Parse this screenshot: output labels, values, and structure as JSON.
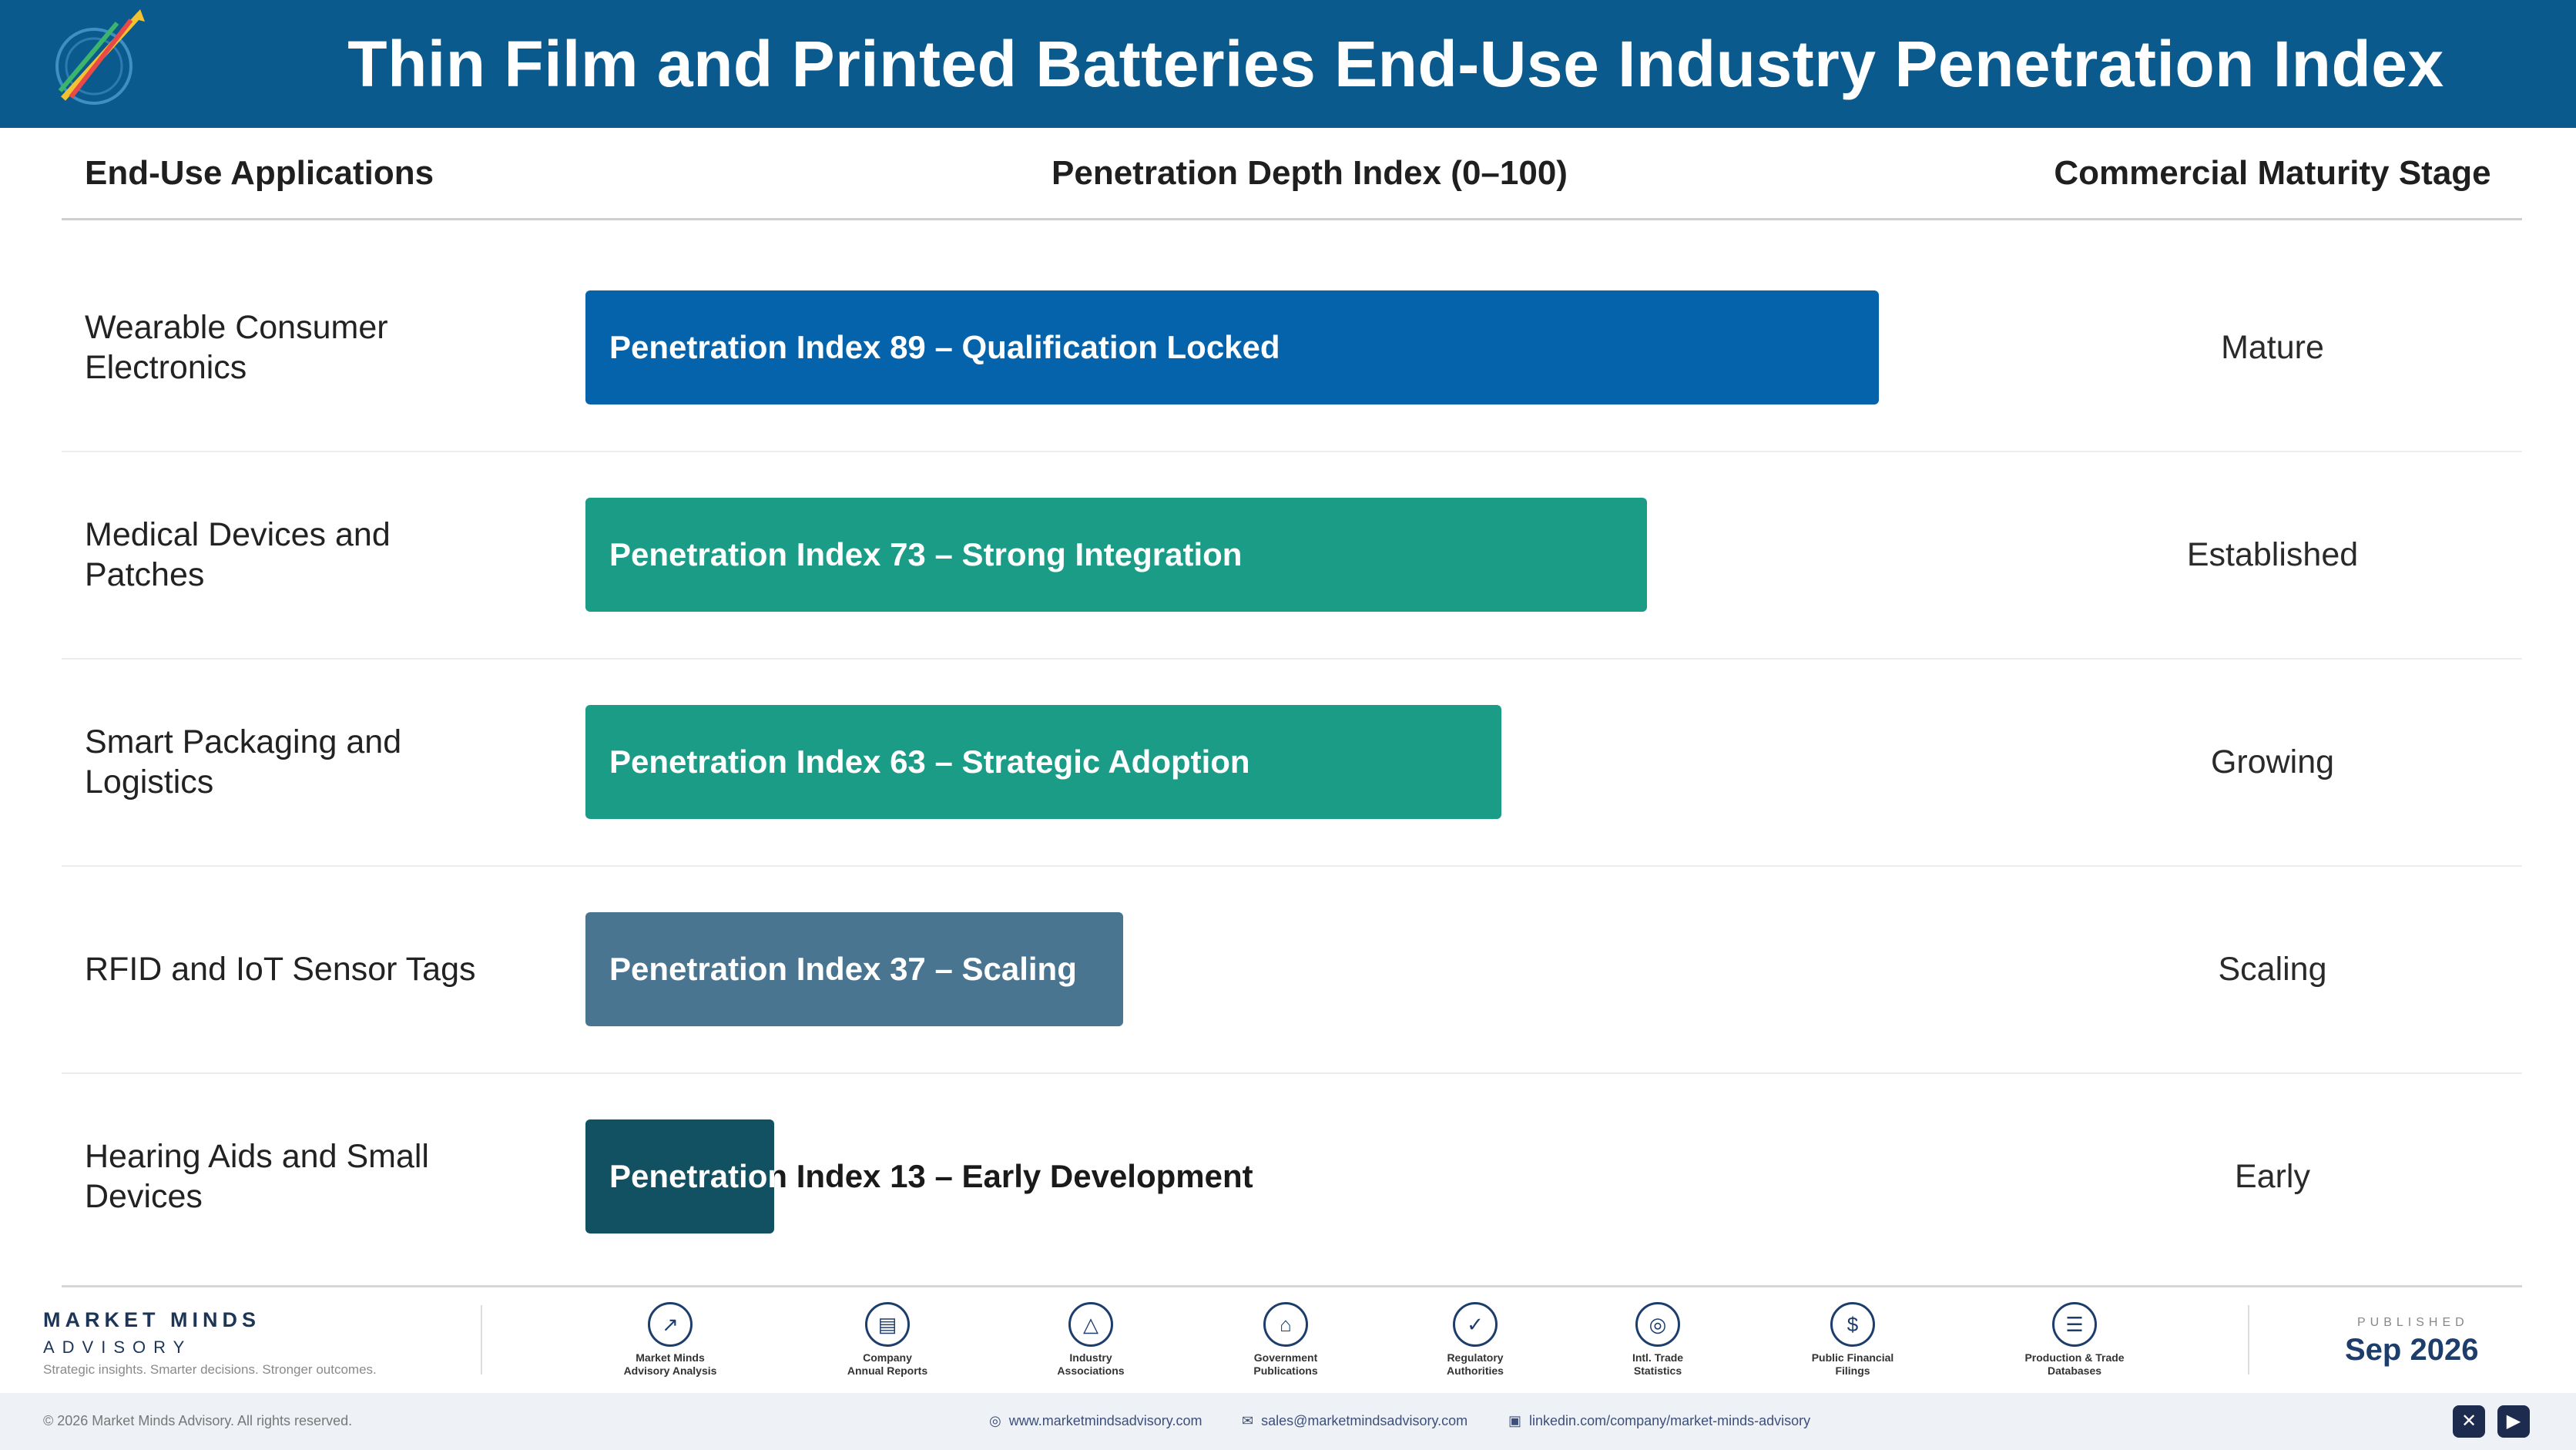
{
  "header": {
    "title": "Thin Film and Printed Batteries End-Use Industry Penetration Index"
  },
  "columns": {
    "applications": "End-Use Applications",
    "index": "Penetration Depth Index (0–100)",
    "stage": "Commercial Maturity Stage"
  },
  "chart_data": {
    "type": "bar",
    "orientation": "horizontal",
    "title": "Thin Film and Printed Batteries End-Use Industry Penetration Index",
    "xlabel": "Penetration Depth Index (0–100)",
    "xlim": [
      0,
      100
    ],
    "categories": [
      "Wearable Consumer Electronics",
      "Medical Devices and Patches",
      "Smart Packaging and Logistics",
      "RFID and IoT Sensor Tags",
      "Hearing Aids and Small Devices"
    ],
    "values": [
      89,
      73,
      63,
      37,
      13
    ],
    "bar_labels": [
      "Penetration Index 89 – Qualification Locked",
      "Penetration Index 73 – Strong Integration",
      "Penetration Index 63 – Strategic Adoption",
      "Penetration Index 37 – Scaling",
      "Penetration Index 13 – Early Development"
    ],
    "stages": [
      "Mature",
      "Established",
      "Growing",
      "Scaling",
      "Early"
    ],
    "colors": [
      "#0563ab",
      "#1b9c87",
      "#1b9c87",
      "#4a7590",
      "#115161"
    ]
  },
  "footer": {
    "brand_name": "MARKET MINDS",
    "brand_sub": "ADVISORY",
    "tagline": "Strategic insights. Smarter decisions. Stronger outcomes.",
    "sources": [
      {
        "icon": "chart-line-icon",
        "line1": "Market Minds",
        "line2": "Advisory Analysis"
      },
      {
        "icon": "document-icon",
        "line1": "Company",
        "line2": "Annual Reports"
      },
      {
        "icon": "network-icon",
        "line1": "Industry",
        "line2": "Associations"
      },
      {
        "icon": "government-building-icon",
        "line1": "Government",
        "line2": "Publications"
      },
      {
        "icon": "shield-check-icon",
        "line1": "Regulatory",
        "line2": "Authorities"
      },
      {
        "icon": "globe-icon",
        "line1": "Intl. Trade",
        "line2": "Statistics"
      },
      {
        "icon": "dollar-coin-icon",
        "line1": "Public Financial",
        "line2": "Filings"
      },
      {
        "icon": "database-icon",
        "line1": "Production & Trade",
        "line2": "Databases"
      }
    ],
    "published_label": "PUBLISHED",
    "published_date": "Sep 2026",
    "copyright": "© 2026 Market Minds Advisory. All rights reserved.",
    "website": "www.marketmindsadvisory.com",
    "email": "sales@marketmindsadvisory.com",
    "linkedin": "linkedin.com/company/market-minds-advisory"
  }
}
